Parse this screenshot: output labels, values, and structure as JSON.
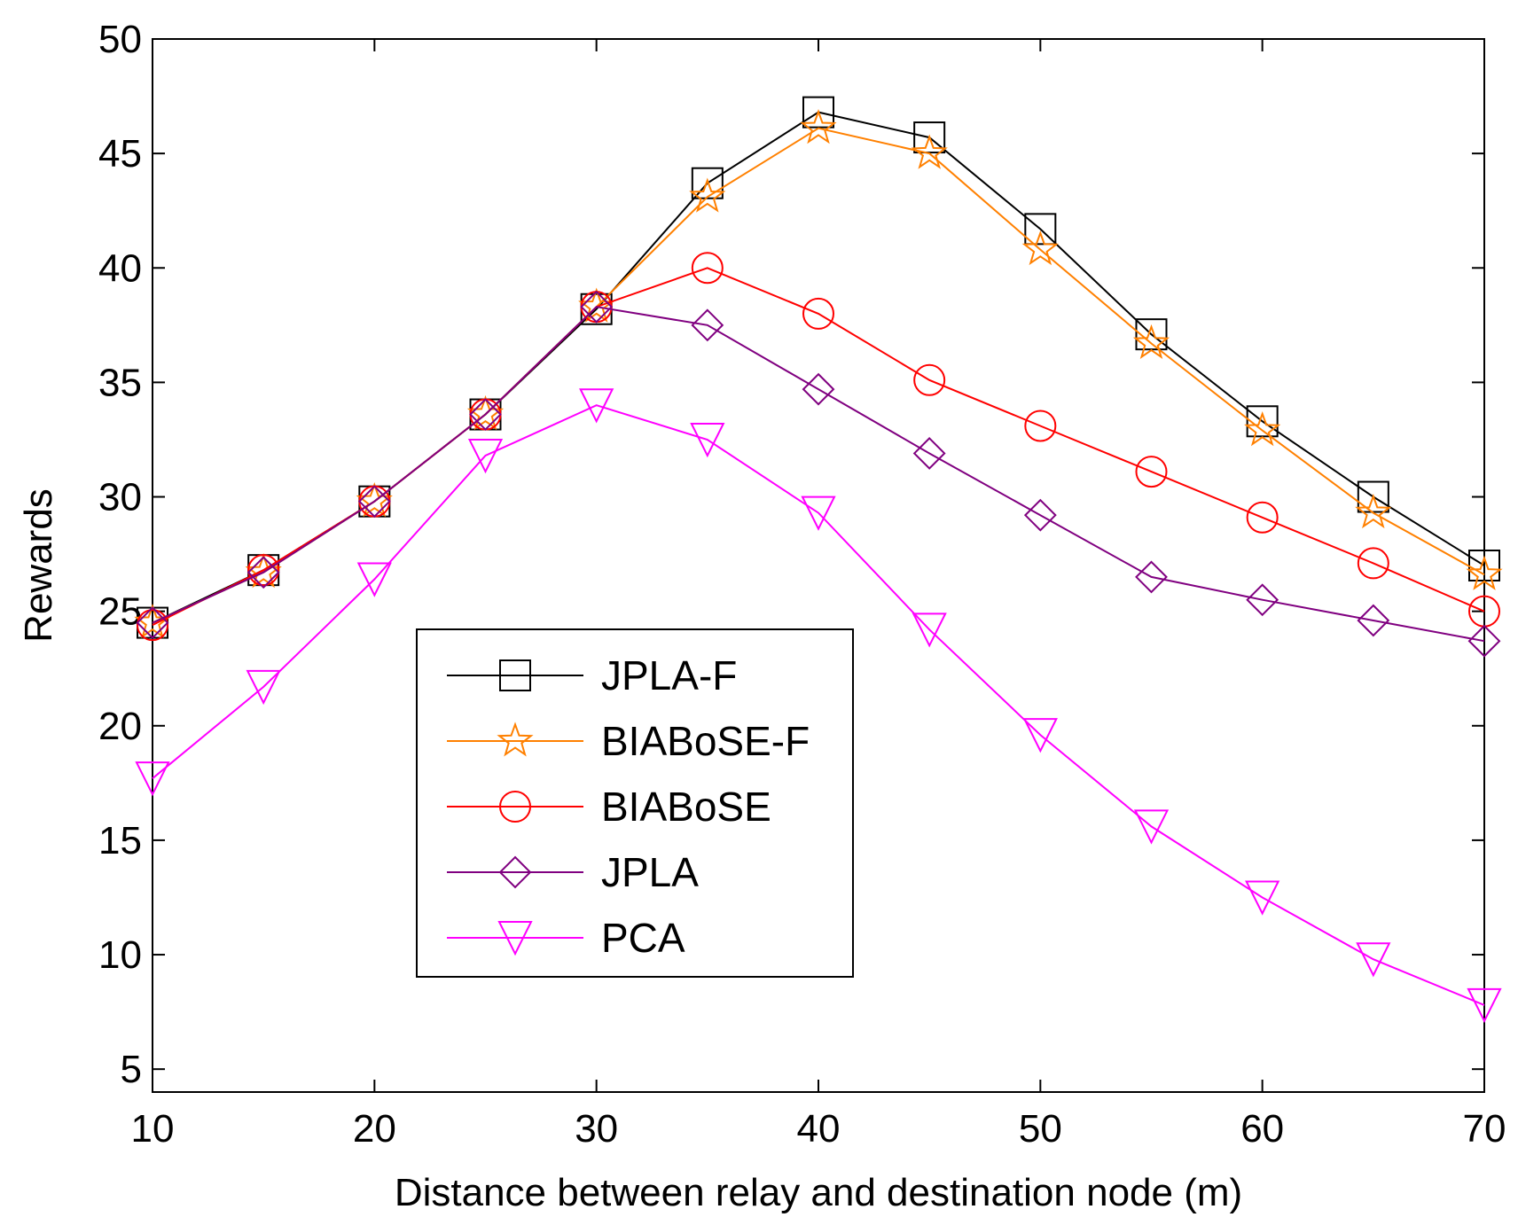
{
  "chart_data": {
    "type": "line",
    "title": "",
    "xlabel": "Distance between relay and destination node (m)",
    "ylabel": "Rewards",
    "xlim": [
      10,
      70
    ],
    "ylim": [
      4,
      50
    ],
    "xticks": [
      10,
      20,
      30,
      40,
      50,
      60,
      70
    ],
    "yticks": [
      5,
      10,
      15,
      20,
      25,
      30,
      35,
      40,
      45,
      50
    ],
    "grid": false,
    "legend_position": "lower-left",
    "x": [
      10,
      15,
      20,
      25,
      30,
      35,
      40,
      45,
      50,
      55,
      60,
      65,
      70
    ],
    "series": [
      {
        "name": "JPLA-F",
        "color": "#000000",
        "marker": "square",
        "values": [
          24.5,
          26.8,
          29.8,
          33.6,
          38.2,
          43.7,
          46.8,
          45.7,
          41.7,
          37.1,
          33.3,
          30.0,
          27.0
        ]
      },
      {
        "name": "BIABoSE-F",
        "color": "#ff8000",
        "marker": "star",
        "values": [
          24.5,
          26.7,
          29.8,
          33.6,
          38.3,
          43.1,
          46.1,
          45.0,
          40.8,
          36.7,
          32.9,
          29.3,
          26.6
        ]
      },
      {
        "name": "BIABoSE",
        "color": "#ff0000",
        "marker": "circle",
        "values": [
          24.4,
          26.8,
          29.8,
          33.6,
          38.3,
          40.0,
          38.0,
          35.1,
          33.1,
          31.1,
          29.1,
          27.1,
          25.0
        ]
      },
      {
        "name": "JPLA",
        "color": "#800080",
        "marker": "diamond",
        "values": [
          24.5,
          26.7,
          29.8,
          33.6,
          38.3,
          37.5,
          34.7,
          31.9,
          29.2,
          26.5,
          25.5,
          24.6,
          23.7
        ]
      },
      {
        "name": "PCA",
        "color": "#ff00ff",
        "marker": "triangle-down",
        "values": [
          17.7,
          21.7,
          26.4,
          31.8,
          34.0,
          32.5,
          29.3,
          24.2,
          19.6,
          15.6,
          12.5,
          9.8,
          7.8
        ]
      }
    ]
  }
}
